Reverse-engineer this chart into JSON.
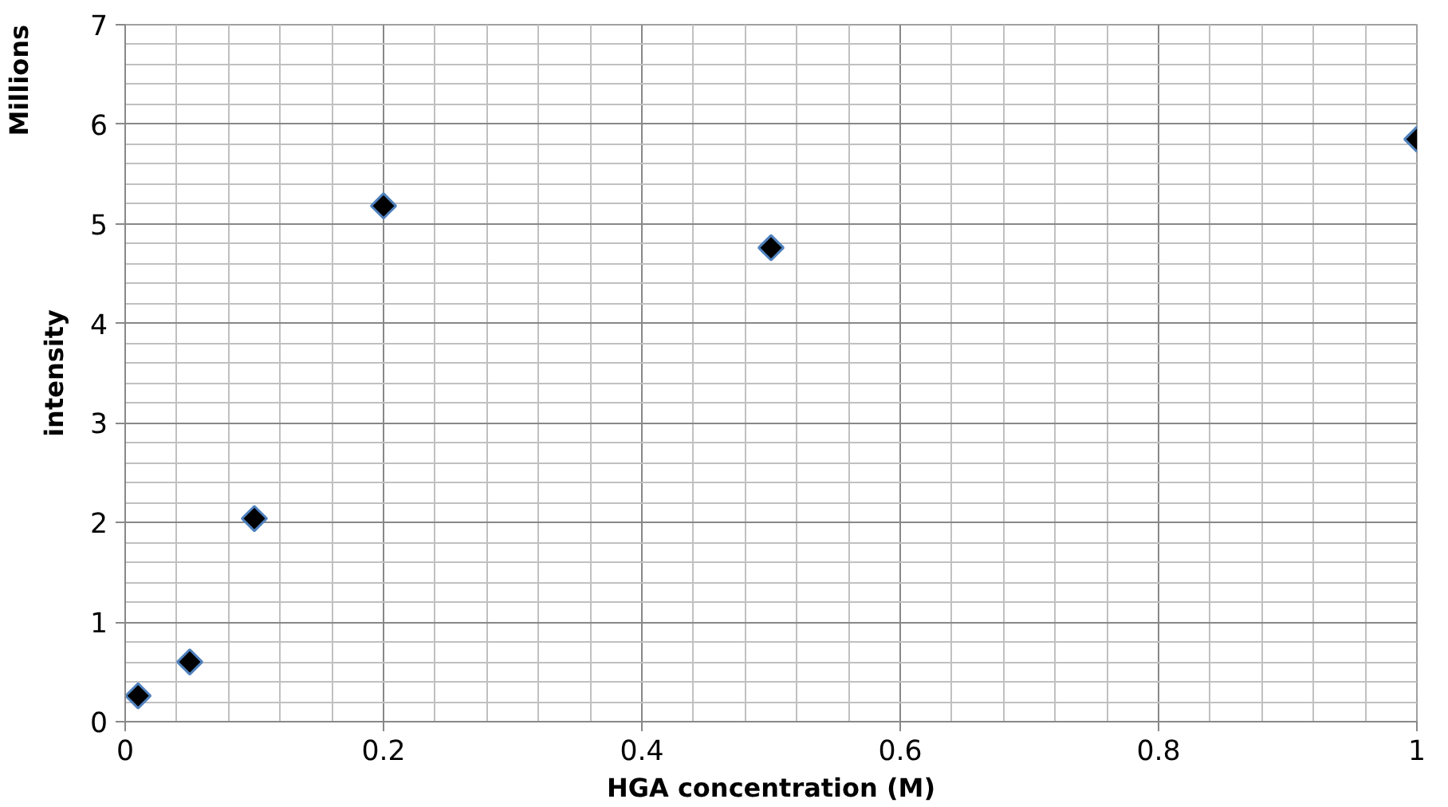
{
  "chart_data": {
    "type": "scatter",
    "xlabel": "HGA concentration (M)",
    "ylabel": "intensity",
    "annotations": [
      "Millions"
    ],
    "x": [
      0.01,
      0.05,
      0.1,
      0.2,
      0.5,
      1
    ],
    "series": [
      {
        "color": "#000000",
        "values": [
          0.26,
          0.6,
          2.04,
          5.18,
          4.76,
          5.85
        ]
      }
    ],
    "xlim": [
      0,
      1
    ],
    "ylim": [
      0,
      7
    ],
    "xticks": [
      0,
      0.2,
      0.4,
      0.6,
      0.8,
      1
    ],
    "yticks": [
      0,
      1,
      2,
      3,
      4,
      5,
      6,
      7
    ],
    "grid": true,
    "marker": "diamond"
  }
}
